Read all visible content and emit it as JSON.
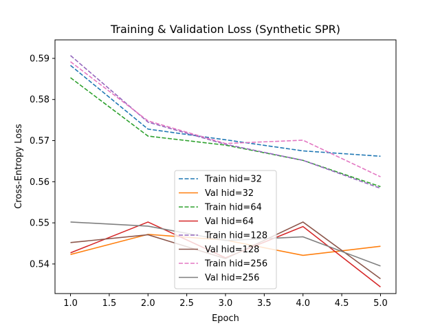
{
  "chart_data": {
    "type": "line",
    "title": "Training & Validation Loss (Synthetic SPR)",
    "xlabel": "Epoch",
    "ylabel": "Cross-Entropy Loss",
    "x": [
      1,
      2,
      3,
      4,
      5
    ],
    "xlim": [
      0.8,
      5.2
    ],
    "ylim": [
      0.5328,
      0.5945
    ],
    "xticks": [
      1.0,
      1.5,
      2.0,
      2.5,
      3.0,
      3.5,
      4.0,
      4.5,
      5.0
    ],
    "xtick_labels": [
      "1.0",
      "1.5",
      "2.0",
      "2.5",
      "3.0",
      "3.5",
      "4.0",
      "4.5",
      "5.0"
    ],
    "yticks": [
      0.54,
      0.55,
      0.56,
      0.57,
      0.58,
      0.59
    ],
    "ytick_labels": [
      "0.54",
      "0.55",
      "0.56",
      "0.57",
      "0.58",
      "0.59"
    ],
    "grid": false,
    "legend_position": "lower center",
    "series": [
      {
        "name": "Train hid=32",
        "color": "#1f77b4",
        "dashed": true,
        "values": [
          0.5883,
          0.5728,
          0.5702,
          0.5675,
          0.5662
        ]
      },
      {
        "name": "Val hid=32",
        "color": "#ff7f0e",
        "dashed": false,
        "values": [
          0.5423,
          0.5472,
          0.5458,
          0.5421,
          0.5443
        ]
      },
      {
        "name": "Train hid=64",
        "color": "#2ca02c",
        "dashed": true,
        "values": [
          0.5853,
          0.5711,
          0.5689,
          0.5652,
          0.5588
        ]
      },
      {
        "name": "Val hid=64",
        "color": "#d62728",
        "dashed": false,
        "values": [
          0.5427,
          0.5502,
          0.5415,
          0.5491,
          0.5344
        ]
      },
      {
        "name": "Train hid=128",
        "color": "#9467bd",
        "dashed": true,
        "values": [
          0.5907,
          0.5745,
          0.5691,
          0.5652,
          0.5584
        ]
      },
      {
        "name": "Val hid=128",
        "color": "#8c564b",
        "dashed": false,
        "values": [
          0.5452,
          0.5471,
          0.5413,
          0.5502,
          0.5364
        ]
      },
      {
        "name": "Train hid=256",
        "color": "#e377c2",
        "dashed": true,
        "values": [
          0.5892,
          0.5748,
          0.5693,
          0.5701,
          0.5612
        ]
      },
      {
        "name": "Val hid=256",
        "color": "#7f7f7f",
        "dashed": false,
        "values": [
          0.5502,
          0.5492,
          0.5457,
          0.5466,
          0.5395
        ]
      }
    ]
  }
}
